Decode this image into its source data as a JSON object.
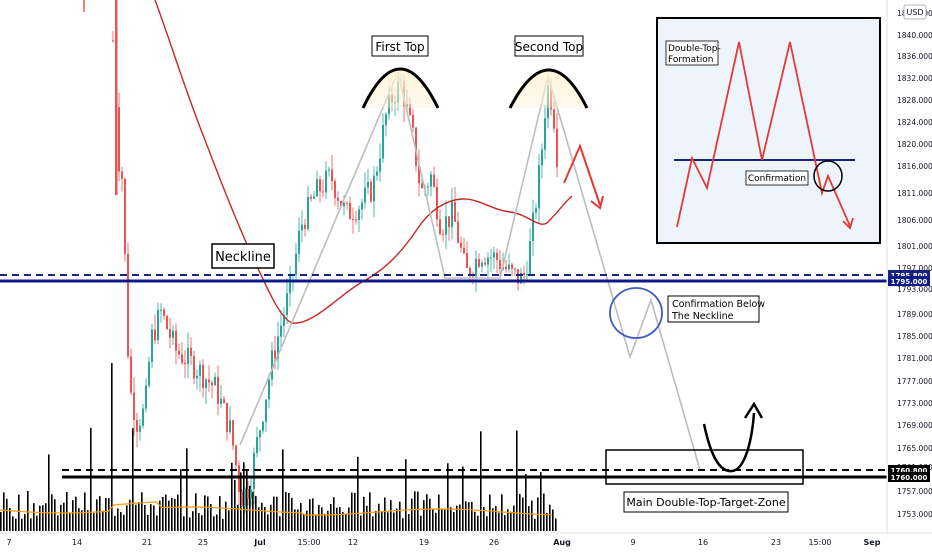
{
  "chart_data": {
    "type": "candlestick",
    "currency": "USD",
    "price_axis": {
      "min": 1751,
      "max": 1847,
      "ticks": [
        1753,
        1757,
        1761,
        1765,
        1769,
        1773,
        1777,
        1781,
        1785,
        1789,
        1793,
        1797,
        1801,
        1806,
        1811,
        1816,
        1820,
        1824,
        1828,
        1832,
        1836,
        1840,
        1845
      ],
      "tick_labels": [
        "1753.000",
        "1757.000",
        "1761.000",
        "1765.000",
        "1769.000",
        "1773.000",
        "1777.000",
        "1781.000",
        "1785.000",
        "1789.000",
        "1793.000",
        "1797.000",
        "1801.000",
        "1806.000",
        "1811.000",
        "1816.000",
        "1820.000",
        "1824.000",
        "1828.000",
        "1832.000",
        "1836.000",
        "1840.000",
        "1845.000"
      ]
    },
    "time_axis": {
      "labels": [
        "7",
        "14",
        "21",
        "25",
        "Jul",
        "15:00",
        "12",
        "19",
        "26",
        "Aug",
        "9",
        "16",
        "23",
        "15:00",
        "Sep"
      ],
      "bold": [
        "Jul",
        "Aug",
        "Sep"
      ]
    },
    "levels": [
      {
        "name": "neckline-dashed",
        "value": 1795.8,
        "label": "1795.800",
        "color": "#1a237e",
        "style": "dashed"
      },
      {
        "name": "neckline",
        "value": 1795.0,
        "label": "1795.000",
        "color": "#0d1a8c",
        "style": "solid"
      },
      {
        "name": "target-dashed",
        "value": 1760.8,
        "label": "1760.800",
        "color": "#000000",
        "style": "dashed"
      },
      {
        "name": "target",
        "value": 1760.0,
        "label": "1760.000",
        "color": "#000000",
        "style": "solid"
      }
    ],
    "series": [
      {
        "type": "candles",
        "up_color": "#26a69a",
        "down_color": "#ef5350"
      },
      {
        "type": "moving-average",
        "color": "#c62828"
      },
      {
        "type": "volume",
        "color": "#000000"
      },
      {
        "type": "volume-average",
        "color": "#ff9800"
      }
    ],
    "annotations": {
      "first_top": "First Top",
      "second_top": "Second Top",
      "neckline": "Neckline",
      "confirmation_below": "Confirmation Below\nThe Neckline",
      "target_zone": "Main Double-Top-Target-Zone",
      "inset_title": "Double-Top-\nFormation",
      "inset_confirmation": "Confirmation"
    }
  }
}
